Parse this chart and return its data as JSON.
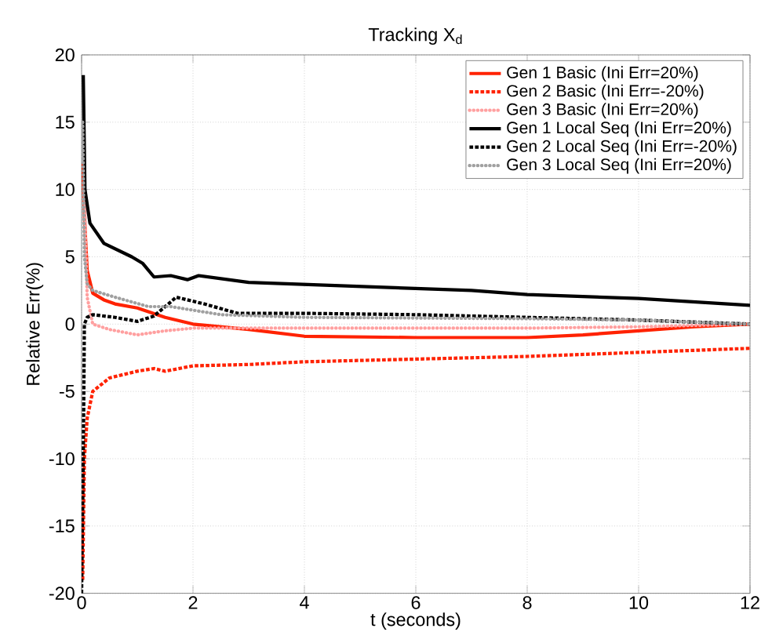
{
  "chart_data": {
    "type": "line",
    "title": "Tracking X$_{d}$",
    "xlabel": "t (seconds)",
    "ylabel": "Relative Err(%)",
    "xlim": [
      0,
      12
    ],
    "ylim": [
      -20,
      20
    ],
    "xticks": [
      0,
      2,
      4,
      6,
      8,
      10,
      12
    ],
    "yticks": [
      -20,
      -15,
      -10,
      -5,
      0,
      5,
      10,
      15,
      20
    ],
    "grid": true,
    "legend": "top right",
    "series": [
      {
        "name": "Gen 1 Basic (Ini Err=20%)",
        "color": "#ff2200",
        "line_style": "solid",
        "x": [
          0.02,
          0.05,
          0.1,
          0.2,
          0.4,
          0.6,
          1,
          1.5,
          2,
          3,
          4,
          6,
          8,
          9,
          10,
          11,
          12
        ],
        "values": [
          12,
          8,
          4,
          2.3,
          1.8,
          1.5,
          1.2,
          0.5,
          0,
          -0.4,
          -0.9,
          -1,
          -1,
          -0.8,
          -0.5,
          -0.2,
          0
        ]
      },
      {
        "name": "Gen 2 Basic (Ini Err=-20%)",
        "color": "#ff2200",
        "line_style": "dashed",
        "x": [
          0.02,
          0.05,
          0.1,
          0.2,
          0.5,
          1,
          1.3,
          1.5,
          2,
          3,
          4,
          6,
          8,
          10,
          12
        ],
        "values": [
          -19,
          -10,
          -7,
          -5,
          -4,
          -3.5,
          -3.3,
          -3.5,
          -3.1,
          -3,
          -2.8,
          -2.6,
          -2.4,
          -2.1,
          -1.8
        ]
      },
      {
        "name": "Gen 3 Basic (Ini Err=20%)",
        "color": "#ffa0a0",
        "line_style": "dotted",
        "x": [
          0.05,
          0.1,
          0.2,
          0.5,
          1,
          1.5,
          2,
          4,
          8,
          10,
          12
        ],
        "values": [
          10,
          2,
          0,
          -0.4,
          -0.8,
          -0.5,
          -0.3,
          -0.3,
          -0.3,
          -0.2,
          0
        ]
      },
      {
        "name": "Gen 1 Local Seq (Ini Err=20%)",
        "color": "#000000",
        "line_style": "solid",
        "x": [
          0.03,
          0.06,
          0.15,
          0.4,
          0.9,
          1.1,
          1.3,
          1.6,
          1.9,
          2.1,
          3,
          5,
          7,
          8,
          10,
          12
        ],
        "values": [
          18.5,
          10,
          7.5,
          6,
          5,
          4.5,
          3.5,
          3.6,
          3.3,
          3.6,
          3.1,
          2.8,
          2.5,
          2.2,
          1.9,
          1.4
        ]
      },
      {
        "name": "Gen 2 Local Seq (Ini Err=-20%)",
        "color": "#000000",
        "line_style": "dashed",
        "x": [
          0,
          0.03,
          0.05,
          0.1,
          0.2,
          0.6,
          1,
          1.3,
          1.7,
          2.2,
          2.8,
          4,
          6,
          8,
          10,
          12
        ],
        "values": [
          -20,
          -10,
          0,
          0.5,
          0.7,
          0.5,
          0.2,
          0.6,
          2,
          1.5,
          0.8,
          0.8,
          0.7,
          0.5,
          0.3,
          0
        ]
      },
      {
        "name": "Gen 3 Local Seq (Ini Err=20%)",
        "color": "#a0a0a0",
        "line_style": "dotted",
        "x": [
          0.02,
          0.05,
          0.1,
          0.2,
          0.6,
          1.2,
          1.6,
          2.5,
          4,
          8,
          10,
          12
        ],
        "values": [
          15,
          5,
          3,
          2.5,
          2,
          1.3,
          1.3,
          0.7,
          0.5,
          0.4,
          0.3,
          0
        ]
      }
    ]
  }
}
